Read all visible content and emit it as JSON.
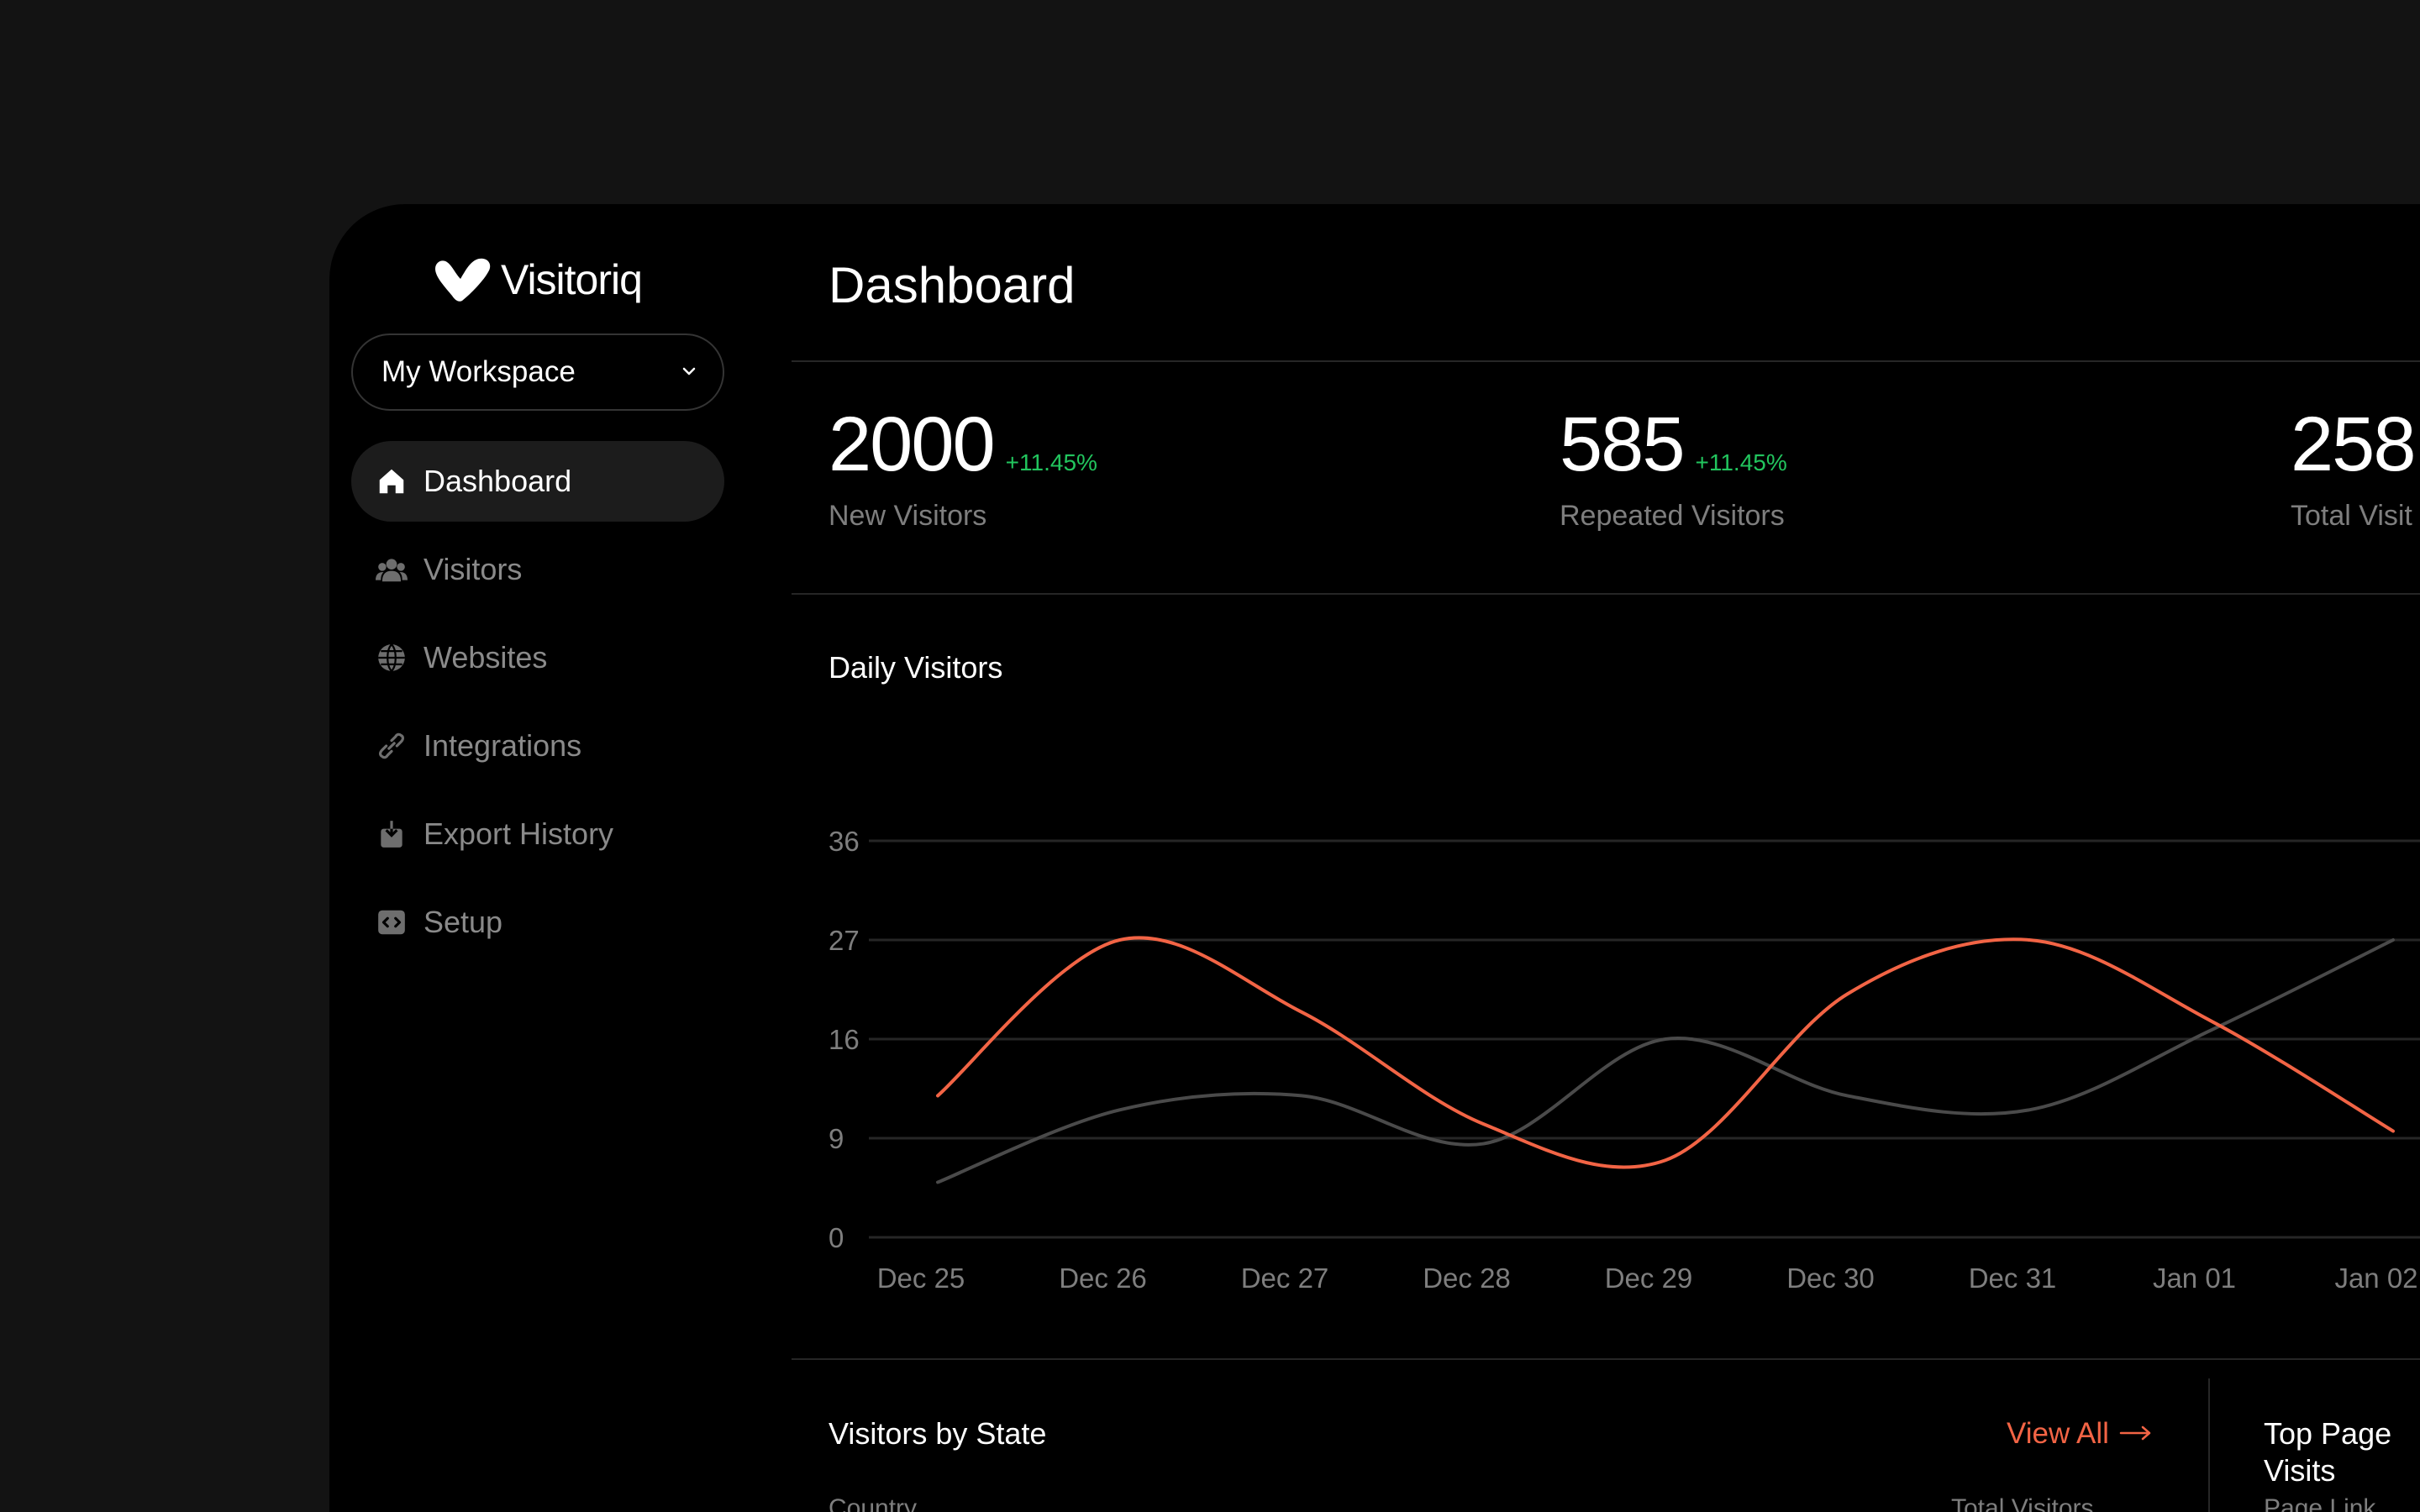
{
  "brand": {
    "name": "Visitoriq"
  },
  "workspace": {
    "label": "My Workspace"
  },
  "sidebar": {
    "items": [
      {
        "label": "Dashboard",
        "icon": "home-icon",
        "active": true
      },
      {
        "label": "Visitors",
        "icon": "users-icon",
        "active": false
      },
      {
        "label": "Websites",
        "icon": "globe-icon",
        "active": false
      },
      {
        "label": "Integrations",
        "icon": "link-icon",
        "active": false
      },
      {
        "label": "Export History",
        "icon": "export-icon",
        "active": false
      },
      {
        "label": "Setup",
        "icon": "code-icon",
        "active": false
      }
    ]
  },
  "header": {
    "title": "Dashboard"
  },
  "stats": [
    {
      "value": "2000",
      "delta": "+11.45%",
      "label": "New Visitors"
    },
    {
      "value": "585",
      "delta": "+11.45%",
      "label": "Repeated Visitors"
    },
    {
      "value": "258",
      "delta": "",
      "label": "Total Visit"
    }
  ],
  "chart_data": {
    "type": "line",
    "title": "Daily Visitors",
    "categories": [
      "Dec 25",
      "Dec 26",
      "Dec 27",
      "Dec 28",
      "Dec 29",
      "Dec 30",
      "Dec 31",
      "Jan 01",
      "Jan 02"
    ],
    "y_ticks": [
      "0",
      "9",
      "16",
      "27",
      "36"
    ],
    "series": [
      {
        "color": "#f26445",
        "values": [
          12,
          27,
          19,
          10,
          7,
          21,
          27,
          18,
          9.5
        ]
      },
      {
        "color": "#4a4a4a",
        "values": [
          5,
          11,
          12,
          8.5,
          16,
          12,
          11,
          17,
          27
        ]
      }
    ],
    "grid": true
  },
  "panels": {
    "visitors_by_state": {
      "title": "Visitors by State",
      "view_all": "View All",
      "col_country": "Country",
      "col_total": "Total Visitors"
    },
    "top_page_visits": {
      "title": "Top Page Visits",
      "col_page": "Page Link"
    }
  },
  "colors": {
    "accent": "#f26445",
    "positive": "#22c55e",
    "background": "#000000",
    "frame": "#131313"
  }
}
